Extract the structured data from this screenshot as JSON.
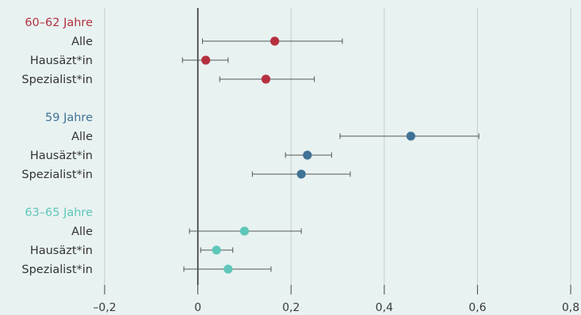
{
  "colors": {
    "background": "#e8f2f1",
    "grid": "#c4cccc",
    "zero_line": "#333333",
    "error_bar": "#555555",
    "text": "#333333"
  },
  "chart_data": {
    "type": "scatter",
    "subtype": "forest-plot",
    "title": "",
    "xlabel": "",
    "ylabel": "",
    "xlim": [
      -0.2,
      0.8
    ],
    "xticks": [
      -0.2,
      0,
      0.2,
      0.4,
      0.6,
      0.8
    ],
    "xtick_labels": [
      "–0,2",
      "0",
      "0,2",
      "0,4",
      "0,6",
      "0,8"
    ],
    "grid": "vertical",
    "reference_line": 0,
    "groups": [
      {
        "name": "60–62 Jahre",
        "color": "#b5303f",
        "rows": [
          {
            "label": "Alle",
            "estimate": 0.165,
            "ci_low": 0.01,
            "ci_high": 0.31
          },
          {
            "label": "Hausäzt*in",
            "estimate": 0.017,
            "ci_low": -0.033,
            "ci_high": 0.065
          },
          {
            "label": "Spezialist*in",
            "estimate": 0.146,
            "ci_low": 0.047,
            "ci_high": 0.25
          }
        ]
      },
      {
        "name": "59 Jahre",
        "color": "#3f7296",
        "rows": [
          {
            "label": "Alle",
            "estimate": 0.457,
            "ci_low": 0.305,
            "ci_high": 0.603
          },
          {
            "label": "Hausäzt*in",
            "estimate": 0.235,
            "ci_low": 0.188,
            "ci_high": 0.287
          },
          {
            "label": "Spezialist*in",
            "estimate": 0.222,
            "ci_low": 0.117,
            "ci_high": 0.327
          }
        ]
      },
      {
        "name": "63–65 Jahre",
        "color": "#5fc7b9",
        "rows": [
          {
            "label": "Alle",
            "estimate": 0.1,
            "ci_low": -0.018,
            "ci_high": 0.222
          },
          {
            "label": "Hausäzt*in",
            "estimate": 0.04,
            "ci_low": 0.006,
            "ci_high": 0.075
          },
          {
            "label": "Spezialist*in",
            "estimate": 0.065,
            "ci_low": -0.03,
            "ci_high": 0.157
          }
        ]
      }
    ]
  }
}
